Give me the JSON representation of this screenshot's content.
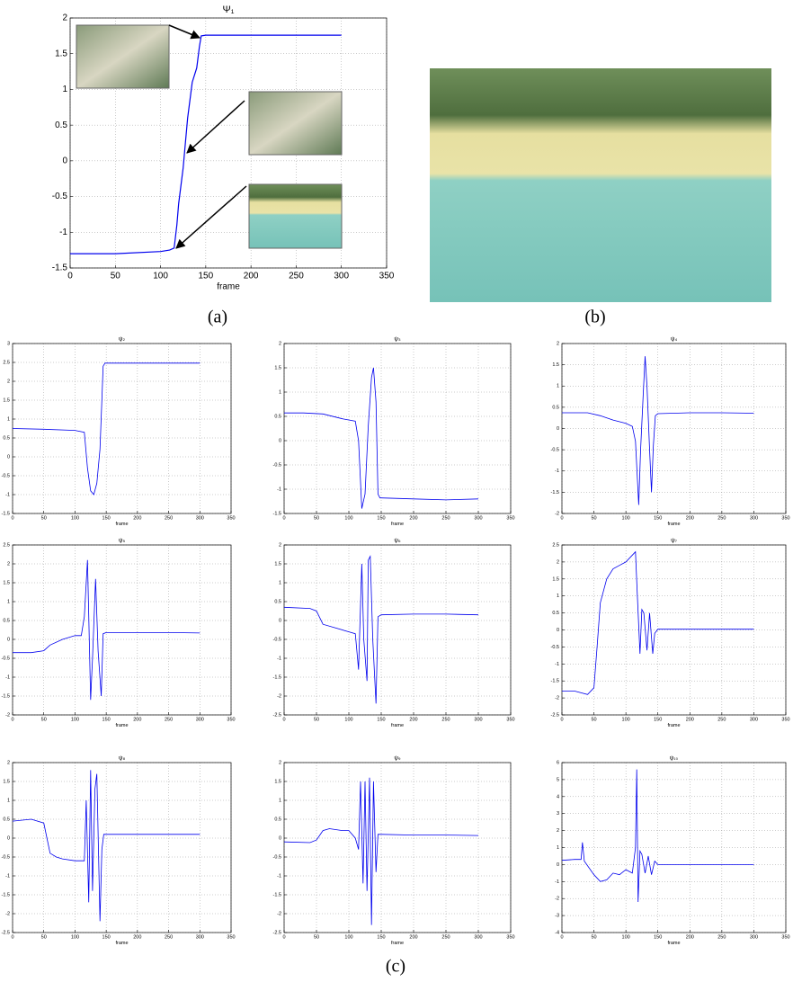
{
  "panel_labels": [
    "(a)",
    "(b)",
    "(c)"
  ],
  "chart_data": [
    {
      "type": "line",
      "title": "Ψ₁",
      "x_label": "frame",
      "color": "#0000ee",
      "grid": true,
      "xlim": [
        0,
        350
      ],
      "xticks": [
        0,
        50,
        100,
        150,
        200,
        250,
        300,
        350
      ],
      "ylim": [
        -1.5,
        2
      ],
      "yticks": [
        -1.5,
        -1,
        -0.5,
        0,
        0.5,
        1,
        1.5,
        2
      ],
      "x": [
        0,
        50,
        100,
        110,
        115,
        118,
        120,
        125,
        130,
        135,
        140,
        143,
        145,
        150,
        200,
        250,
        300
      ],
      "values": [
        -1.3,
        -1.3,
        -1.27,
        -1.25,
        -1.22,
        -0.9,
        -0.6,
        -0.1,
        0.6,
        1.1,
        1.3,
        1.6,
        1.75,
        1.76,
        1.76,
        1.76,
        1.76
      ]
    },
    {
      "type": "line",
      "title": "ψ₂",
      "x_label": "frame",
      "color": "#0000ee",
      "grid": true,
      "xlim": [
        0,
        350
      ],
      "xticks": [
        0,
        50,
        100,
        150,
        200,
        250,
        300,
        350
      ],
      "ylim": [
        -1.5,
        3
      ],
      "yticks": [
        -1.5,
        -1,
        -0.5,
        0,
        0.5,
        1,
        1.5,
        2,
        2.5,
        3
      ],
      "x": [
        0,
        50,
        100,
        115,
        120,
        125,
        130,
        135,
        140,
        143,
        145,
        148,
        150,
        200,
        250,
        300
      ],
      "values": [
        0.75,
        0.73,
        0.7,
        0.65,
        -0.3,
        -0.9,
        -1.0,
        -0.7,
        0.2,
        1.5,
        2.4,
        2.48,
        2.48,
        2.48,
        2.48,
        2.48
      ]
    },
    {
      "type": "line",
      "title": "ψ₃",
      "x_label": "frame",
      "color": "#0000ee",
      "grid": true,
      "xlim": [
        0,
        350
      ],
      "xticks": [
        0,
        50,
        100,
        150,
        200,
        250,
        300,
        350
      ],
      "ylim": [
        -1.5,
        2
      ],
      "yticks": [
        -1.5,
        -1,
        -0.5,
        0,
        0.5,
        1,
        1.5,
        2
      ],
      "x": [
        0,
        30,
        60,
        90,
        110,
        115,
        120,
        125,
        130,
        135,
        138,
        142,
        145,
        148,
        150,
        200,
        250,
        300
      ],
      "values": [
        0.57,
        0.57,
        0.55,
        0.45,
        0.4,
        0.0,
        -1.4,
        -1.1,
        0.3,
        1.3,
        1.5,
        0.8,
        -1.1,
        -1.18,
        -1.18,
        -1.2,
        -1.22,
        -1.2
      ]
    },
    {
      "type": "line",
      "title": "ψ₄",
      "x_label": "frame",
      "color": "#0000ee",
      "grid": true,
      "xlim": [
        0,
        350
      ],
      "xticks": [
        0,
        50,
        100,
        150,
        200,
        250,
        300,
        350
      ],
      "ylim": [
        -2,
        2
      ],
      "yticks": [
        -2,
        -1.5,
        -1,
        -0.5,
        0,
        0.5,
        1,
        1.5,
        2
      ],
      "x": [
        0,
        40,
        60,
        80,
        100,
        110,
        115,
        120,
        123,
        127,
        130,
        133,
        137,
        140,
        143,
        146,
        150,
        200,
        250,
        300
      ],
      "values": [
        0.37,
        0.37,
        0.3,
        0.2,
        0.12,
        0.05,
        -0.3,
        -1.8,
        -0.5,
        0.8,
        1.7,
        1.0,
        -0.5,
        -1.5,
        -0.4,
        0.3,
        0.35,
        0.37,
        0.37,
        0.36
      ]
    },
    {
      "type": "line",
      "title": "ψ₅",
      "x_label": "frame",
      "color": "#0000ee",
      "grid": true,
      "xlim": [
        0,
        350
      ],
      "xticks": [
        0,
        50,
        100,
        150,
        200,
        250,
        300,
        350
      ],
      "ylim": [
        -2,
        2.5
      ],
      "yticks": [
        -2,
        -1.5,
        -1,
        -0.5,
        0,
        0.5,
        1,
        1.5,
        2,
        2.5
      ],
      "x": [
        0,
        30,
        50,
        60,
        80,
        100,
        110,
        115,
        120,
        125,
        128,
        133,
        137,
        142,
        145,
        150,
        200,
        250,
        300
      ],
      "values": [
        -0.35,
        -0.35,
        -0.3,
        -0.15,
        0.0,
        0.1,
        0.1,
        0.6,
        2.1,
        -1.6,
        -0.5,
        1.6,
        -0.3,
        -1.5,
        0.15,
        0.18,
        0.18,
        0.18,
        0.17
      ]
    },
    {
      "type": "line",
      "title": "ψ₆",
      "x_label": "frame",
      "color": "#0000ee",
      "grid": true,
      "xlim": [
        0,
        350
      ],
      "xticks": [
        0,
        50,
        100,
        150,
        200,
        250,
        300,
        350
      ],
      "ylim": [
        -2.5,
        2
      ],
      "yticks": [
        -2.5,
        -2,
        -1.5,
        -1,
        -0.5,
        0,
        0.5,
        1,
        1.5,
        2
      ],
      "x": [
        0,
        40,
        50,
        60,
        80,
        100,
        110,
        115,
        120,
        123,
        128,
        130,
        133,
        137,
        142,
        145,
        150,
        200,
        250,
        300
      ],
      "values": [
        0.35,
        0.32,
        0.25,
        -0.1,
        -0.2,
        -0.3,
        -0.35,
        -1.3,
        1.5,
        -0.5,
        -1.6,
        1.6,
        1.7,
        -0.5,
        -2.2,
        0.1,
        0.15,
        0.17,
        0.17,
        0.15
      ]
    },
    {
      "type": "line",
      "title": "ψ₇",
      "x_label": "frame",
      "color": "#0000ee",
      "grid": true,
      "xlim": [
        0,
        350
      ],
      "xticks": [
        0,
        50,
        100,
        150,
        200,
        250,
        300,
        350
      ],
      "ylim": [
        -2.5,
        2.5
      ],
      "yticks": [
        -2.5,
        -2,
        -1.5,
        -1,
        -0.5,
        0,
        0.5,
        1,
        1.5,
        2,
        2.5
      ],
      "x": [
        0,
        20,
        40,
        50,
        55,
        60,
        70,
        80,
        90,
        100,
        110,
        115,
        118,
        122,
        125,
        128,
        133,
        137,
        142,
        145,
        150,
        200,
        250,
        300
      ],
      "values": [
        -1.8,
        -1.8,
        -1.9,
        -1.7,
        -0.5,
        0.8,
        1.5,
        1.8,
        1.9,
        2.0,
        2.2,
        2.3,
        1.0,
        -0.7,
        0.6,
        0.5,
        -0.6,
        0.5,
        -0.7,
        -0.1,
        0.02,
        0.02,
        0.02,
        0.02
      ]
    },
    {
      "type": "line",
      "title": "ψ₈",
      "x_label": "frame",
      "color": "#0000ee",
      "grid": true,
      "xlim": [
        0,
        350
      ],
      "xticks": [
        0,
        50,
        100,
        150,
        200,
        250,
        300,
        350
      ],
      "ylim": [
        -2.5,
        2
      ],
      "yticks": [
        -2.5,
        -2,
        -1.5,
        -1,
        -0.5,
        0,
        0.5,
        1,
        1.5,
        2
      ],
      "x": [
        0,
        30,
        50,
        55,
        60,
        70,
        80,
        100,
        115,
        118,
        122,
        125,
        128,
        132,
        135,
        140,
        143,
        146,
        150,
        200,
        250,
        300
      ],
      "values": [
        0.45,
        0.5,
        0.4,
        0.0,
        -0.4,
        -0.5,
        -0.55,
        -0.6,
        -0.6,
        1.0,
        -1.7,
        1.8,
        -1.4,
        1.3,
        1.7,
        -2.2,
        -0.3,
        0.1,
        0.1,
        0.1,
        0.1,
        0.1
      ]
    },
    {
      "type": "line",
      "title": "ψ₉",
      "x_label": "frame",
      "color": "#0000ee",
      "grid": true,
      "xlim": [
        0,
        350
      ],
      "xticks": [
        0,
        50,
        100,
        150,
        200,
        250,
        300,
        350
      ],
      "ylim": [
        -2.5,
        2
      ],
      "yticks": [
        -2.5,
        -2,
        -1.5,
        -1,
        -0.5,
        0,
        0.5,
        1,
        1.5,
        2
      ],
      "x": [
        0,
        40,
        50,
        60,
        70,
        90,
        100,
        110,
        115,
        118,
        122,
        125,
        128,
        132,
        135,
        138,
        142,
        145,
        150,
        200,
        250,
        300
      ],
      "values": [
        -0.1,
        -0.12,
        -0.05,
        0.2,
        0.25,
        0.2,
        0.2,
        0.0,
        -0.3,
        1.5,
        -1.2,
        1.5,
        -1.4,
        1.6,
        -2.3,
        1.5,
        -0.9,
        0.1,
        0.1,
        0.08,
        0.08,
        0.07
      ]
    },
    {
      "type": "line",
      "title": "ψ₁₀",
      "x_label": "frame",
      "color": "#0000ee",
      "grid": true,
      "xlim": [
        0,
        350
      ],
      "xticks": [
        0,
        50,
        100,
        150,
        200,
        250,
        300,
        350
      ],
      "ylim": [
        -4,
        6
      ],
      "yticks": [
        -4,
        -3,
        -2,
        -1,
        0,
        1,
        2,
        3,
        4,
        5,
        6
      ],
      "x": [
        0,
        20,
        30,
        32,
        35,
        50,
        60,
        70,
        80,
        90,
        100,
        110,
        115,
        117,
        119,
        122,
        125,
        130,
        135,
        140,
        145,
        150,
        200,
        250,
        300
      ],
      "values": [
        0.25,
        0.3,
        0.3,
        1.3,
        0.2,
        -0.6,
        -1.0,
        -0.9,
        -0.5,
        -0.6,
        -0.3,
        -0.5,
        1.0,
        5.6,
        -2.2,
        0.8,
        0.6,
        -0.5,
        0.5,
        -0.6,
        0.2,
        0.0,
        0.0,
        0.0,
        0.0
      ]
    }
  ]
}
